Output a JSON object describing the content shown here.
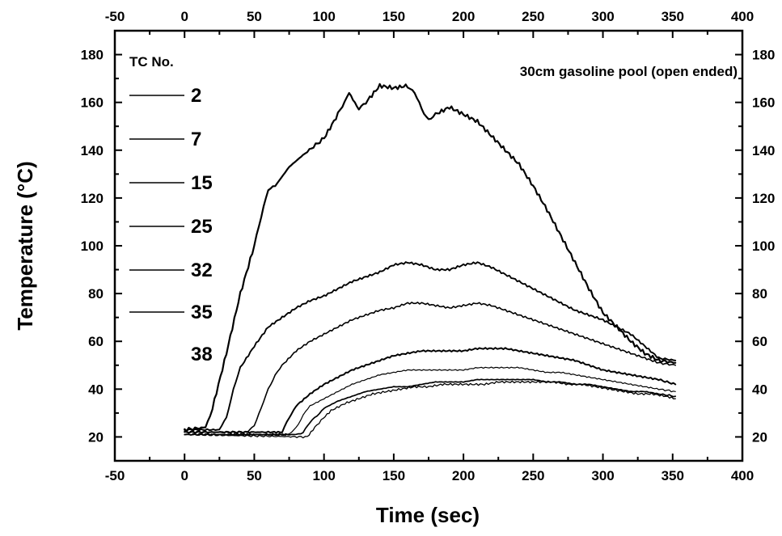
{
  "chart_data": {
    "type": "line",
    "xlabel": "Time (sec)",
    "ylabel": "Temperature (°C)",
    "xlim": [
      -50,
      400
    ],
    "ylim": [
      10,
      190
    ],
    "x_ticks": [
      -50,
      0,
      50,
      100,
      150,
      200,
      250,
      300,
      350,
      400
    ],
    "y_ticks": [
      20,
      40,
      60,
      80,
      100,
      120,
      140,
      160,
      180
    ],
    "annotation": "30cm gasoline pool (open ended)",
    "legend_title": "TC No.",
    "legend_position": "top-left",
    "grid": false,
    "series": [
      {
        "name": "2",
        "points": [
          [
            0,
            23
          ],
          [
            15,
            24
          ],
          [
            20,
            32
          ],
          [
            30,
            55
          ],
          [
            40,
            80
          ],
          [
            50,
            100
          ],
          [
            55,
            112
          ],
          [
            60,
            124
          ],
          [
            65,
            125
          ],
          [
            75,
            133
          ],
          [
            85,
            138
          ],
          [
            100,
            145
          ],
          [
            110,
            155
          ],
          [
            118,
            164
          ],
          [
            125,
            157
          ],
          [
            130,
            160
          ],
          [
            140,
            167
          ],
          [
            150,
            166
          ],
          [
            160,
            167
          ],
          [
            165,
            164
          ],
          [
            170,
            157
          ],
          [
            175,
            153
          ],
          [
            180,
            155
          ],
          [
            190,
            158
          ],
          [
            200,
            155
          ],
          [
            210,
            152
          ],
          [
            220,
            146
          ],
          [
            230,
            140
          ],
          [
            240,
            134
          ],
          [
            250,
            125
          ],
          [
            260,
            115
          ],
          [
            270,
            104
          ],
          [
            280,
            93
          ],
          [
            290,
            82
          ],
          [
            300,
            72
          ],
          [
            310,
            66
          ],
          [
            320,
            60
          ],
          [
            330,
            55
          ],
          [
            340,
            52
          ],
          [
            352,
            51
          ]
        ]
      },
      {
        "name": "7",
        "points": [
          [
            0,
            23
          ],
          [
            25,
            23
          ],
          [
            30,
            28
          ],
          [
            35,
            40
          ],
          [
            40,
            49
          ],
          [
            50,
            58
          ],
          [
            60,
            66
          ],
          [
            70,
            70
          ],
          [
            80,
            74
          ],
          [
            90,
            77
          ],
          [
            100,
            79
          ],
          [
            110,
            82
          ],
          [
            120,
            85
          ],
          [
            130,
            87
          ],
          [
            140,
            89
          ],
          [
            150,
            92
          ],
          [
            160,
            93
          ],
          [
            170,
            92
          ],
          [
            180,
            90
          ],
          [
            190,
            90
          ],
          [
            200,
            92
          ],
          [
            210,
            93
          ],
          [
            220,
            91
          ],
          [
            230,
            88
          ],
          [
            240,
            85
          ],
          [
            250,
            82
          ],
          [
            260,
            79
          ],
          [
            270,
            76
          ],
          [
            280,
            73
          ],
          [
            290,
            71
          ],
          [
            300,
            69
          ],
          [
            310,
            66
          ],
          [
            320,
            63
          ],
          [
            330,
            58
          ],
          [
            340,
            53
          ],
          [
            352,
            52
          ]
        ]
      },
      {
        "name": "15",
        "points": [
          [
            0,
            22
          ],
          [
            45,
            22
          ],
          [
            50,
            25
          ],
          [
            55,
            32
          ],
          [
            60,
            40
          ],
          [
            65,
            46
          ],
          [
            70,
            50
          ],
          [
            80,
            56
          ],
          [
            90,
            60
          ],
          [
            100,
            63
          ],
          [
            110,
            66
          ],
          [
            120,
            69
          ],
          [
            130,
            71
          ],
          [
            140,
            73
          ],
          [
            150,
            74
          ],
          [
            160,
            76
          ],
          [
            170,
            76
          ],
          [
            180,
            75
          ],
          [
            190,
            74
          ],
          [
            200,
            75
          ],
          [
            210,
            76
          ],
          [
            220,
            75
          ],
          [
            230,
            73
          ],
          [
            240,
            71
          ],
          [
            250,
            69
          ],
          [
            260,
            67
          ],
          [
            270,
            65
          ],
          [
            280,
            63
          ],
          [
            290,
            61
          ],
          [
            300,
            59
          ],
          [
            310,
            57
          ],
          [
            320,
            55
          ],
          [
            330,
            53
          ],
          [
            340,
            51
          ],
          [
            352,
            50
          ]
        ]
      },
      {
        "name": "25",
        "points": [
          [
            0,
            22
          ],
          [
            60,
            22
          ],
          [
            70,
            22
          ],
          [
            75,
            28
          ],
          [
            80,
            33
          ],
          [
            90,
            38
          ],
          [
            100,
            42
          ],
          [
            110,
            45
          ],
          [
            120,
            48
          ],
          [
            130,
            50
          ],
          [
            140,
            52
          ],
          [
            150,
            54
          ],
          [
            160,
            55
          ],
          [
            170,
            56
          ],
          [
            180,
            56
          ],
          [
            190,
            56
          ],
          [
            200,
            56
          ],
          [
            210,
            57
          ],
          [
            220,
            57
          ],
          [
            230,
            57
          ],
          [
            240,
            56
          ],
          [
            250,
            55
          ],
          [
            260,
            54
          ],
          [
            270,
            53
          ],
          [
            280,
            52
          ],
          [
            290,
            50
          ],
          [
            300,
            48
          ],
          [
            310,
            47
          ],
          [
            320,
            46
          ],
          [
            330,
            45
          ],
          [
            340,
            44
          ],
          [
            352,
            42
          ]
        ]
      },
      {
        "name": "32",
        "points": [
          [
            0,
            21
          ],
          [
            75,
            21
          ],
          [
            80,
            24
          ],
          [
            85,
            29
          ],
          [
            90,
            33
          ],
          [
            100,
            36
          ],
          [
            110,
            39
          ],
          [
            120,
            42
          ],
          [
            130,
            44
          ],
          [
            140,
            46
          ],
          [
            150,
            47
          ],
          [
            160,
            48
          ],
          [
            170,
            48
          ],
          [
            180,
            48
          ],
          [
            190,
            48
          ],
          [
            200,
            48
          ],
          [
            210,
            49
          ],
          [
            220,
            49
          ],
          [
            230,
            49
          ],
          [
            240,
            49
          ],
          [
            250,
            48
          ],
          [
            260,
            47
          ],
          [
            270,
            47
          ],
          [
            280,
            46
          ],
          [
            290,
            45
          ],
          [
            300,
            44
          ],
          [
            310,
            43
          ],
          [
            320,
            42
          ],
          [
            330,
            41
          ],
          [
            340,
            40
          ],
          [
            352,
            39
          ]
        ]
      },
      {
        "name": "35",
        "points": [
          [
            0,
            21
          ],
          [
            80,
            21
          ],
          [
            85,
            22
          ],
          [
            90,
            26
          ],
          [
            95,
            29
          ],
          [
            100,
            32
          ],
          [
            110,
            35
          ],
          [
            120,
            37
          ],
          [
            130,
            39
          ],
          [
            140,
            40
          ],
          [
            150,
            41
          ],
          [
            160,
            41
          ],
          [
            170,
            42
          ],
          [
            180,
            43
          ],
          [
            190,
            43
          ],
          [
            200,
            43
          ],
          [
            210,
            44
          ],
          [
            220,
            44
          ],
          [
            230,
            44
          ],
          [
            240,
            44
          ],
          [
            250,
            44
          ],
          [
            260,
            43
          ],
          [
            270,
            43
          ],
          [
            280,
            42
          ],
          [
            290,
            42
          ],
          [
            300,
            41
          ],
          [
            310,
            40
          ],
          [
            320,
            39
          ],
          [
            330,
            39
          ],
          [
            340,
            38
          ],
          [
            352,
            37
          ]
        ]
      },
      {
        "name": "38",
        "points": [
          [
            0,
            21
          ],
          [
            85,
            20
          ],
          [
            88,
            20
          ],
          [
            92,
            23
          ],
          [
            98,
            27
          ],
          [
            105,
            31
          ],
          [
            115,
            34
          ],
          [
            125,
            36
          ],
          [
            135,
            38
          ],
          [
            145,
            39
          ],
          [
            155,
            40
          ],
          [
            165,
            41
          ],
          [
            175,
            41
          ],
          [
            185,
            42
          ],
          [
            195,
            42
          ],
          [
            205,
            42
          ],
          [
            215,
            42
          ],
          [
            225,
            43
          ],
          [
            235,
            43
          ],
          [
            245,
            43
          ],
          [
            255,
            43
          ],
          [
            265,
            43
          ],
          [
            275,
            42
          ],
          [
            285,
            42
          ],
          [
            295,
            41
          ],
          [
            305,
            40
          ],
          [
            315,
            39
          ],
          [
            325,
            38
          ],
          [
            335,
            38
          ],
          [
            345,
            37
          ],
          [
            352,
            36
          ]
        ]
      }
    ]
  }
}
